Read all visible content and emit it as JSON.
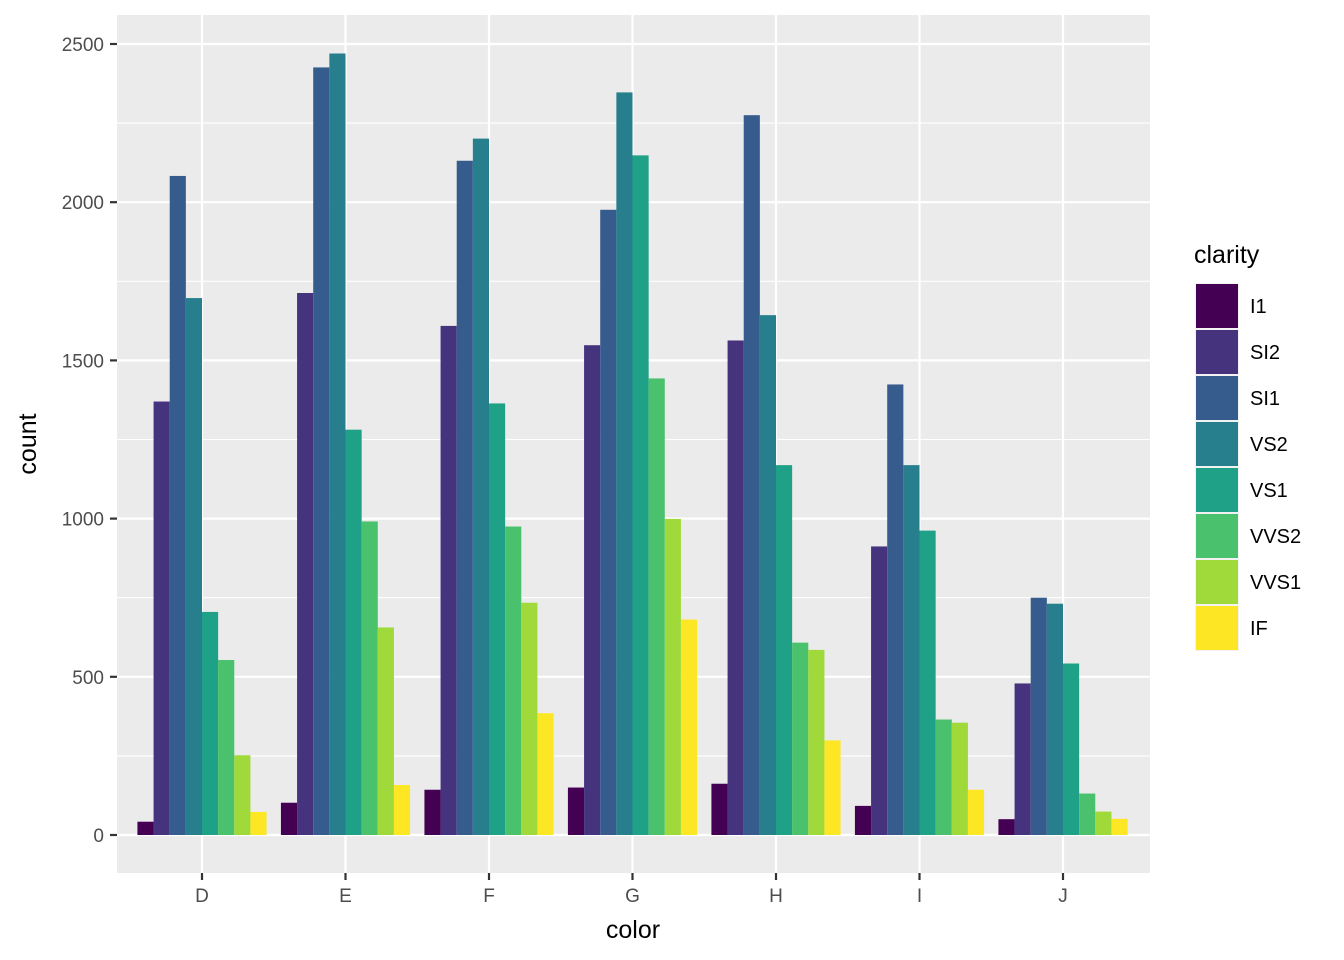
{
  "chart_data": {
    "type": "bar",
    "title": "",
    "xlabel": "color",
    "ylabel": "count",
    "categories": [
      "D",
      "E",
      "F",
      "G",
      "H",
      "I",
      "J"
    ],
    "ylim": [
      0,
      2600
    ],
    "yticks": [
      0,
      500,
      1000,
      1500,
      2000,
      2500
    ],
    "grid": true,
    "legend": {
      "title": "clarity",
      "position": "right"
    },
    "series": [
      {
        "name": "I1",
        "color": "#440154",
        "values": [
          42,
          102,
          143,
          150,
          162,
          92,
          50
        ]
      },
      {
        "name": "SI2",
        "color": "#46337E",
        "values": [
          1370,
          1713,
          1609,
          1548,
          1563,
          912,
          479
        ]
      },
      {
        "name": "SI1",
        "color": "#365C8D",
        "values": [
          2083,
          2426,
          2131,
          1976,
          2275,
          1424,
          750
        ]
      },
      {
        "name": "VS2",
        "color": "#277F8E",
        "values": [
          1697,
          2470,
          2201,
          2347,
          1643,
          1169,
          731
        ]
      },
      {
        "name": "VS1",
        "color": "#1FA187",
        "values": [
          705,
          1281,
          1364,
          2148,
          1169,
          962,
          542
        ]
      },
      {
        "name": "VVS2",
        "color": "#4AC16D",
        "values": [
          553,
          991,
          975,
          1443,
          608,
          365,
          131
        ]
      },
      {
        "name": "VVS1",
        "color": "#9FDA3A",
        "values": [
          252,
          656,
          734,
          999,
          585,
          355,
          74
        ]
      },
      {
        "name": "IF",
        "color": "#FDE725",
        "values": [
          73,
          158,
          385,
          681,
          299,
          143,
          51
        ]
      }
    ],
    "panel_color": "#EBEBEB",
    "gridline_color": "#FFFFFF"
  }
}
